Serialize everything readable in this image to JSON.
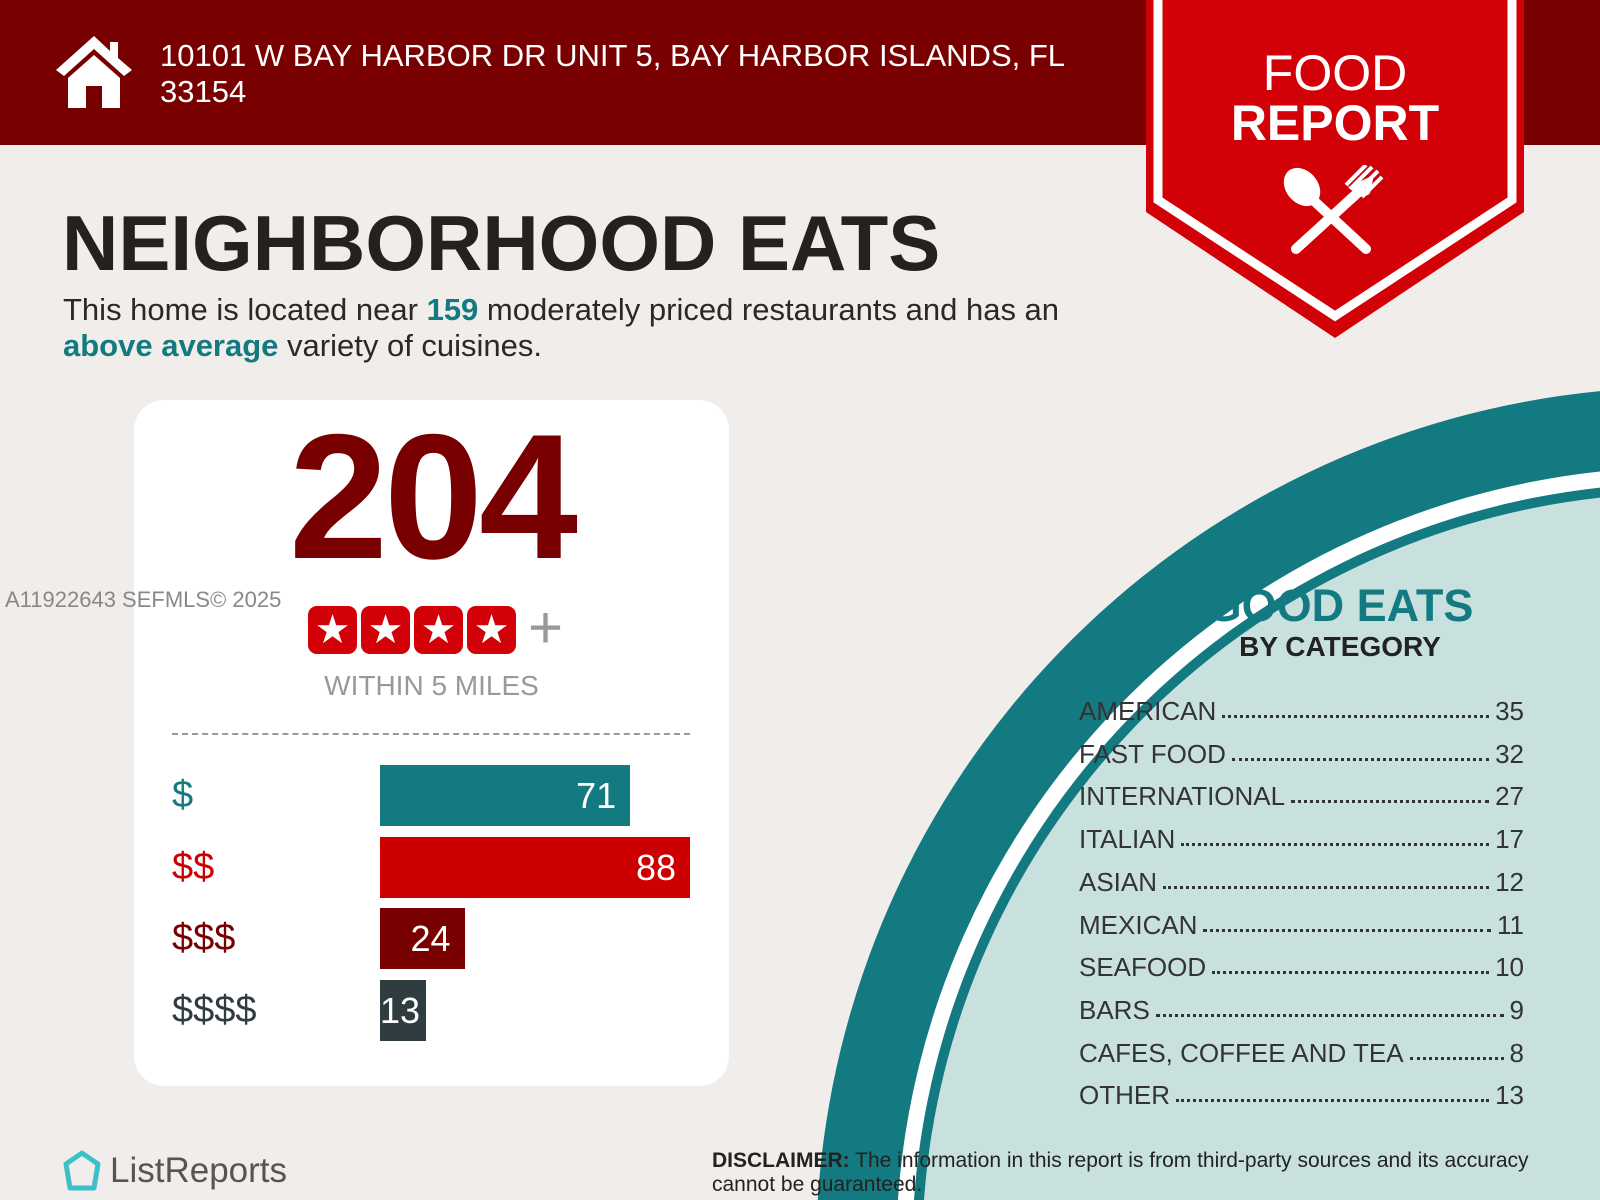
{
  "header": {
    "address": "10101 W BAY HARBOR DR UNIT 5, BAY HARBOR ISLANDS, FL 33154",
    "icon": "house-icon"
  },
  "badge": {
    "line1": "FOOD",
    "line2": "REPORT",
    "icon": "spoon-fork-icon",
    "color": "#d20007"
  },
  "title": "NEIGHBORHOOD EATS",
  "subtitle": {
    "p1": "This home is located near ",
    "count": "159",
    "p2": " moderately priced restaurants and has an ",
    "variety": "above average",
    "p3": " variety of cuisines."
  },
  "summary": {
    "total": "204",
    "stars": 4,
    "plus": "+",
    "within": "WITHIN 5 MILES"
  },
  "price_tiers": [
    {
      "label": "$",
      "value": 71,
      "color": "#127a80"
    },
    {
      "label": "$$",
      "value": 88,
      "color": "#cc0000"
    },
    {
      "label": "$$$",
      "value": 24,
      "color": "#790000"
    },
    {
      "label": "$$$$",
      "value": 13,
      "color": "#2f3d40"
    }
  ],
  "watermark": "A11922643  SEFMLS© 2025",
  "categories": {
    "title": "GOOD EATS",
    "subtitle": "BY CATEGORY",
    "items": [
      {
        "name": "AMERICAN",
        "count": "35"
      },
      {
        "name": "FAST FOOD",
        "count": "32"
      },
      {
        "name": "INTERNATIONAL",
        "count": "27"
      },
      {
        "name": "ITALIAN",
        "count": "17"
      },
      {
        "name": "ASIAN",
        "count": "12"
      },
      {
        "name": "MEXICAN",
        "count": "11"
      },
      {
        "name": "SEAFOOD",
        "count": "10"
      },
      {
        "name": "BARS",
        "count": "9"
      },
      {
        "name": "CAFES, COFFEE AND TEA",
        "count": "8"
      },
      {
        "name": "OTHER",
        "count": "13"
      }
    ]
  },
  "footer": {
    "logo": "ListReports",
    "disclaimer_label": "DISCLAIMER:",
    "disclaimer": " The information in this report is from third-party sources and its accuracy cannot be guaranteed."
  }
}
